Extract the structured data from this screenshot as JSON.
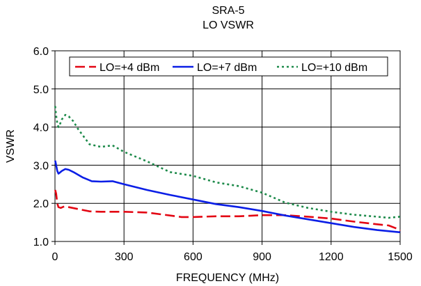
{
  "chart_data": {
    "type": "line",
    "title": "SRA-5",
    "subtitle": "LO VSWR",
    "xlabel": "FREQUENCY (MHz)",
    "ylabel": "VSWR",
    "xlim": [
      0,
      1500
    ],
    "ylim": [
      1.0,
      6.0
    ],
    "x_ticks": [
      "0",
      "300",
      "600",
      "900",
      "1200",
      "1500"
    ],
    "y_ticks": [
      "1.0",
      "2.0",
      "3.0",
      "4.0",
      "5.0",
      "6.0"
    ],
    "grid": true,
    "legend_position": "top",
    "series": [
      {
        "name": "LO=+4 dBm",
        "color": "#e30613",
        "dash": "long-dash",
        "points": [
          [
            1,
            2.35
          ],
          [
            5,
            2.25
          ],
          [
            10,
            2.0
          ],
          [
            15,
            1.9
          ],
          [
            25,
            1.88
          ],
          [
            40,
            1.92
          ],
          [
            60,
            1.9
          ],
          [
            100,
            1.85
          ],
          [
            150,
            1.79
          ],
          [
            200,
            1.78
          ],
          [
            300,
            1.78
          ],
          [
            400,
            1.76
          ],
          [
            500,
            1.68
          ],
          [
            550,
            1.64
          ],
          [
            600,
            1.64
          ],
          [
            700,
            1.66
          ],
          [
            800,
            1.66
          ],
          [
            900,
            1.69
          ],
          [
            1000,
            1.69
          ],
          [
            1100,
            1.65
          ],
          [
            1200,
            1.6
          ],
          [
            1300,
            1.52
          ],
          [
            1400,
            1.45
          ],
          [
            1450,
            1.42
          ],
          [
            1480,
            1.35
          ],
          [
            1500,
            1.28
          ]
        ]
      },
      {
        "name": "LO=+7 dBm",
        "color": "#0a1ee6",
        "dash": "solid",
        "points": [
          [
            1,
            3.12
          ],
          [
            5,
            3.0
          ],
          [
            10,
            2.85
          ],
          [
            15,
            2.78
          ],
          [
            20,
            2.8
          ],
          [
            30,
            2.85
          ],
          [
            45,
            2.9
          ],
          [
            60,
            2.88
          ],
          [
            80,
            2.82
          ],
          [
            120,
            2.68
          ],
          [
            160,
            2.58
          ],
          [
            200,
            2.57
          ],
          [
            250,
            2.58
          ],
          [
            300,
            2.5
          ],
          [
            400,
            2.35
          ],
          [
            500,
            2.22
          ],
          [
            600,
            2.1
          ],
          [
            700,
            1.98
          ],
          [
            800,
            1.9
          ],
          [
            900,
            1.8
          ],
          [
            1000,
            1.68
          ],
          [
            1100,
            1.58
          ],
          [
            1200,
            1.48
          ],
          [
            1300,
            1.38
          ],
          [
            1400,
            1.3
          ],
          [
            1500,
            1.24
          ]
        ]
      },
      {
        "name": "LO=+10 dBm",
        "color": "#1d8a4a",
        "dash": "dotted",
        "points": [
          [
            1,
            4.55
          ],
          [
            5,
            4.3
          ],
          [
            10,
            4.1
          ],
          [
            15,
            4.0
          ],
          [
            20,
            4.05
          ],
          [
            30,
            4.2
          ],
          [
            45,
            4.32
          ],
          [
            60,
            4.28
          ],
          [
            80,
            4.15
          ],
          [
            100,
            3.95
          ],
          [
            150,
            3.55
          ],
          [
            200,
            3.48
          ],
          [
            250,
            3.52
          ],
          [
            300,
            3.35
          ],
          [
            400,
            3.1
          ],
          [
            500,
            2.82
          ],
          [
            600,
            2.72
          ],
          [
            700,
            2.55
          ],
          [
            800,
            2.45
          ],
          [
            900,
            2.28
          ],
          [
            1000,
            2.02
          ],
          [
            1100,
            1.88
          ],
          [
            1200,
            1.78
          ],
          [
            1300,
            1.7
          ],
          [
            1400,
            1.65
          ],
          [
            1450,
            1.62
          ],
          [
            1500,
            1.65
          ]
        ]
      }
    ]
  }
}
